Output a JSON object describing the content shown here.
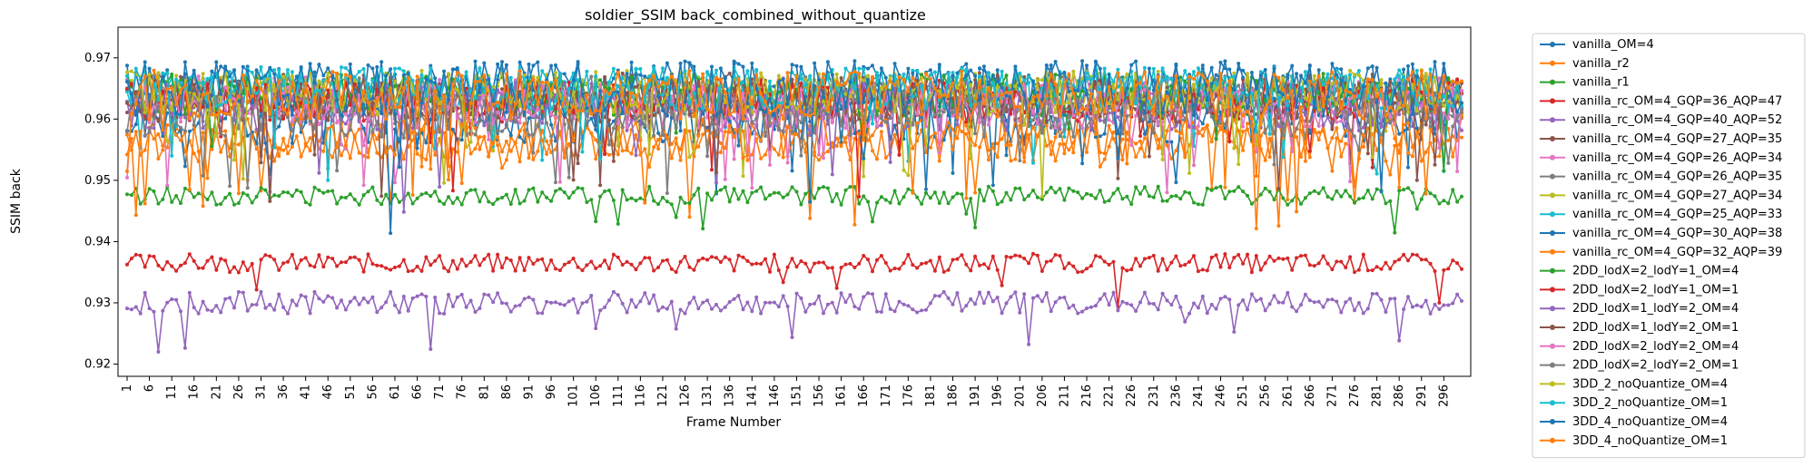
{
  "chart_data": {
    "type": "line",
    "title": "soldier_SSIM back_combined_without_quantize",
    "xlabel": "Frame Number",
    "ylabel": "SSIM back",
    "xlim": [
      1,
      300
    ],
    "ylim": [
      0.918,
      0.975
    ],
    "yticks": [
      "0.92",
      "0.93",
      "0.94",
      "0.95",
      "0.96",
      "0.97"
    ],
    "yticks_values": [
      0.92,
      0.93,
      0.94,
      0.95,
      0.96,
      0.97
    ],
    "xticks": [
      1,
      6,
      11,
      16,
      21,
      26,
      31,
      36,
      41,
      46,
      51,
      56,
      61,
      66,
      71,
      76,
      81,
      86,
      91,
      96,
      101,
      106,
      111,
      116,
      121,
      126,
      131,
      136,
      141,
      146,
      151,
      156,
      161,
      166,
      171,
      176,
      181,
      186,
      191,
      196,
      201,
      206,
      211,
      216,
      221,
      226,
      231,
      236,
      241,
      246,
      251,
      256,
      261,
      266,
      271,
      276,
      281,
      286,
      291,
      296
    ],
    "legend_position": "outside-right",
    "grid": false,
    "series": [
      {
        "name": "vanilla_OM=4",
        "color": "#1f77b4",
        "mean": 0.9655,
        "amp": 0.004,
        "seed": 11
      },
      {
        "name": "vanilla_r2",
        "color": "#ff7f0e",
        "mean": 0.956,
        "amp": 0.003,
        "seed": 12
      },
      {
        "name": "vanilla_r1",
        "color": "#2ca02c",
        "mean": 0.9475,
        "amp": 0.0015,
        "seed": 13
      },
      {
        "name": "vanilla_rc_OM=4_GQP=36_AQP=47",
        "color": "#d62728",
        "mean": 0.9365,
        "amp": 0.0015,
        "seed": 14
      },
      {
        "name": "vanilla_rc_OM=4_GQP=40_AQP=52",
        "color": "#9467bd",
        "mean": 0.93,
        "amp": 0.0018,
        "seed": 15
      },
      {
        "name": "vanilla_rc_OM=4_GQP=27_AQP=35",
        "color": "#8c564b",
        "mean": 0.964,
        "amp": 0.0035,
        "seed": 16
      },
      {
        "name": "vanilla_rc_OM=4_GQP=26_AQP=34",
        "color": "#e377c2",
        "mean": 0.9635,
        "amp": 0.0035,
        "seed": 17
      },
      {
        "name": "vanilla_rc_OM=4_GQP=26_AQP=35",
        "color": "#7f7f7f",
        "mean": 0.963,
        "amp": 0.004,
        "seed": 18
      },
      {
        "name": "vanilla_rc_OM=4_GQP=27_AQP=34",
        "color": "#bcbd22",
        "mean": 0.964,
        "amp": 0.0035,
        "seed": 19
      },
      {
        "name": "vanilla_rc_OM=4_GQP=25_AQP=33",
        "color": "#17becf",
        "mean": 0.965,
        "amp": 0.0035,
        "seed": 20
      },
      {
        "name": "vanilla_rc_OM=4_GQP=30_AQP=38",
        "color": "#1f77b4",
        "mean": 0.96,
        "amp": 0.004,
        "seed": 21
      },
      {
        "name": "vanilla_rc_OM=4_GQP=32_AQP=39",
        "color": "#ff7f0e",
        "mean": 0.957,
        "amp": 0.0035,
        "seed": 22
      },
      {
        "name": "2DD_lodX=2_lodY=1_OM=4",
        "color": "#2ca02c",
        "mean": 0.964,
        "amp": 0.0035,
        "seed": 23
      },
      {
        "name": "2DD_lodX=2_lodY=1_OM=1",
        "color": "#d62728",
        "mean": 0.963,
        "amp": 0.0035,
        "seed": 24
      },
      {
        "name": "2DD_lodX=1_lodY=2_OM=4",
        "color": "#9467bd",
        "mean": 0.962,
        "amp": 0.004,
        "seed": 25
      },
      {
        "name": "2DD_lodX=1_lodY=2_OM=1",
        "color": "#8c564b",
        "mean": 0.963,
        "amp": 0.0035,
        "seed": 26
      },
      {
        "name": "2DD_lodX=2_lodY=2_OM=4",
        "color": "#e377c2",
        "mean": 0.962,
        "amp": 0.0035,
        "seed": 27
      },
      {
        "name": "2DD_lodX=2_lodY=2_OM=1",
        "color": "#7f7f7f",
        "mean": 0.961,
        "amp": 0.004,
        "seed": 28
      },
      {
        "name": "3DD_2_noQuantize_OM=4",
        "color": "#bcbd22",
        "mean": 0.9645,
        "amp": 0.0035,
        "seed": 29
      },
      {
        "name": "3DD_2_noQuantize_OM=1",
        "color": "#17becf",
        "mean": 0.965,
        "amp": 0.0035,
        "seed": 30
      },
      {
        "name": "3DD_4_noQuantize_OM=4",
        "color": "#1f77b4",
        "mean": 0.965,
        "amp": 0.0045,
        "seed": 31
      },
      {
        "name": "3DD_4_noQuantize_OM=1",
        "color": "#ff7f0e",
        "mean": 0.964,
        "amp": 0.004,
        "seed": 32
      }
    ]
  }
}
